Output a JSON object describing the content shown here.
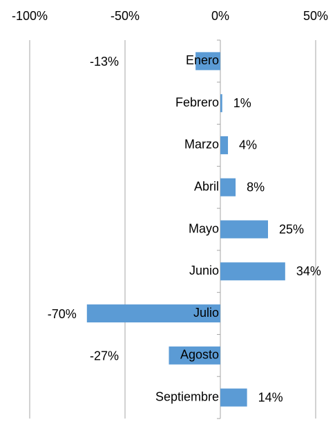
{
  "chart_data": {
    "type": "barh",
    "categories": [
      "Enero",
      "Febrero",
      "Marzo",
      "Abril",
      "Mayo",
      "Junio",
      "Julio",
      "Agosto",
      "Septiembre"
    ],
    "values": [
      -13,
      1,
      4,
      8,
      25,
      34,
      -70,
      -27,
      14
    ],
    "value_labels": [
      "-13%",
      "1%",
      "4%",
      "8%",
      "25%",
      "34%",
      "-70%",
      "-27%",
      "14%"
    ],
    "color": "#5b9bd5",
    "xlim": [
      -100,
      50
    ],
    "xticks": [
      {
        "value": -100,
        "label": "-100%"
      },
      {
        "value": -50,
        "label": "-50%"
      },
      {
        "value": 0,
        "label": "0%"
      },
      {
        "value": 50,
        "label": "50%"
      }
    ],
    "grid": true
  }
}
